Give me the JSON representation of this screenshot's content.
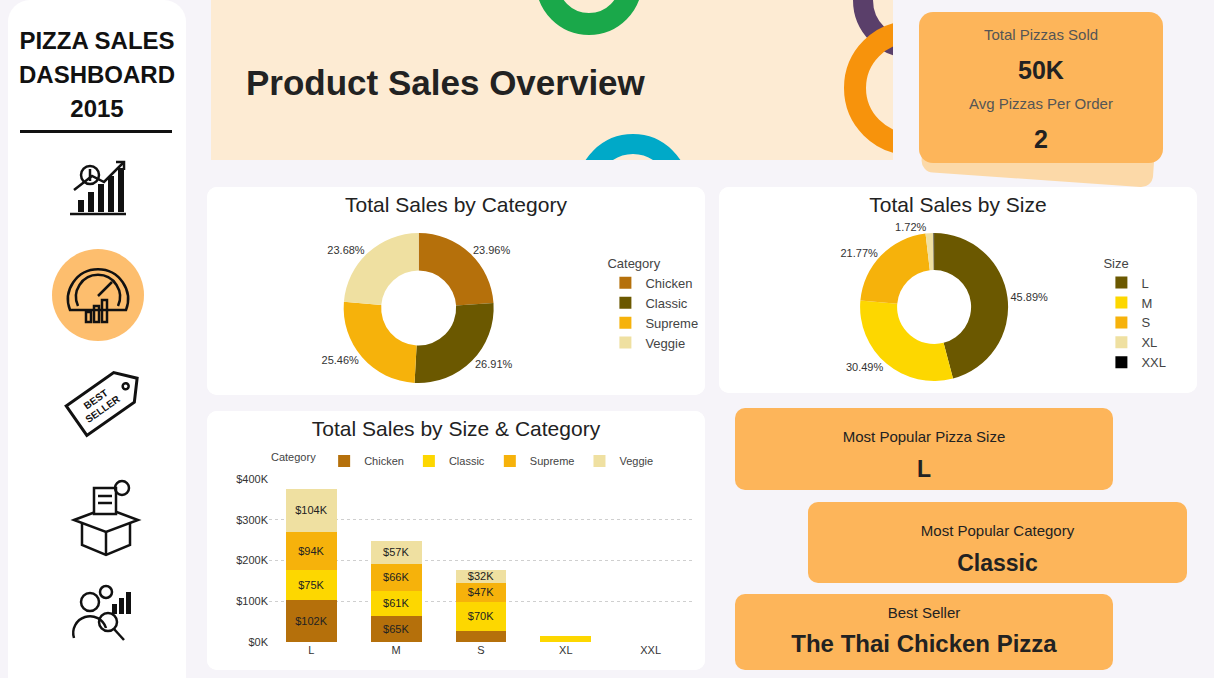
{
  "dashboard": {
    "sidebar_title": [
      "PIZZA SALES",
      "DASHBOARD",
      "2015"
    ],
    "badge": [
      "BEST",
      "SELLER"
    ],
    "banner_title": "Product Sales Overview",
    "kpis": [
      {
        "label": "Total Pizzas Sold",
        "value": "50K"
      },
      {
        "label": "Avg Pizzas Per Order",
        "value": "2"
      }
    ],
    "cards": [
      {
        "label": "Most Popular Pizza Size",
        "value": "L"
      },
      {
        "label": "Most Popular Category",
        "value": "Classic"
      },
      {
        "label": "Best Seller",
        "value": "The Thai Chicken Pizza"
      }
    ]
  },
  "chart_data": [
    {
      "type": "donut",
      "title": "Total Sales by Category",
      "legend_title": "Category",
      "legend": "right",
      "data_labels": true,
      "categories": [
        "Chicken",
        "Classic",
        "Supreme",
        "Veggie"
      ],
      "values": [
        23.96,
        26.91,
        25.46,
        23.68
      ],
      "value_labels": [
        "23.96%",
        "26.91%",
        "25.46%",
        "23.68%"
      ],
      "colors": [
        "#b5700b",
        "#6b5800",
        "#f6b20b",
        "#efe0a1"
      ]
    },
    {
      "type": "donut",
      "title": "Total Sales by Size",
      "legend_title": "Size",
      "legend": "right",
      "data_labels": true,
      "categories": [
        "L",
        "M",
        "S",
        "XL",
        "XXL"
      ],
      "values": [
        45.89,
        30.49,
        21.77,
        1.72,
        0.13
      ],
      "value_labels": [
        "45.89%",
        "30.49%",
        "21.77%",
        "1.72%",
        null
      ],
      "colors": [
        "#6b5800",
        "#fdd700",
        "#f6b20b",
        "#efe0a1",
        "#000000"
      ]
    },
    {
      "type": "bar",
      "title": "Total Sales by Size & Category",
      "legend_title": "Category",
      "legend": "top",
      "stacked": true,
      "data_labels": true,
      "grid": true,
      "categories": [
        "L",
        "M",
        "S",
        "XL",
        "XXL"
      ],
      "series": [
        {
          "name": "Chicken",
          "color": "#b5700b",
          "values": [
            102000,
            65000,
            28000,
            0,
            0
          ],
          "value_labels": [
            "$102K",
            "$65K",
            null,
            null,
            null
          ]
        },
        {
          "name": "Classic",
          "color": "#fdd700",
          "values": [
            75000,
            61000,
            70000,
            14000,
            1000
          ],
          "value_labels": [
            "$75K",
            "$61K",
            "$70K",
            null,
            null
          ]
        },
        {
          "name": "Supreme",
          "color": "#f6b20b",
          "values": [
            94000,
            66000,
            47000,
            0,
            0
          ],
          "value_labels": [
            "$94K",
            "$66K",
            "$47K",
            null,
            null
          ]
        },
        {
          "name": "Veggie",
          "color": "#efe0a1",
          "values": [
            104000,
            57000,
            32000,
            0,
            0
          ],
          "value_labels": [
            "$104K",
            "$57K",
            "$32K",
            null,
            null
          ]
        }
      ],
      "ylim": [
        0,
        400000
      ],
      "yticks": [
        {
          "value": 0,
          "label": "$0K"
        },
        {
          "value": 100000,
          "label": "$100K"
        },
        {
          "value": 200000,
          "label": "$200K"
        },
        {
          "value": 300000,
          "label": "$300K"
        },
        {
          "value": 400000,
          "label": "$400K"
        }
      ]
    }
  ]
}
